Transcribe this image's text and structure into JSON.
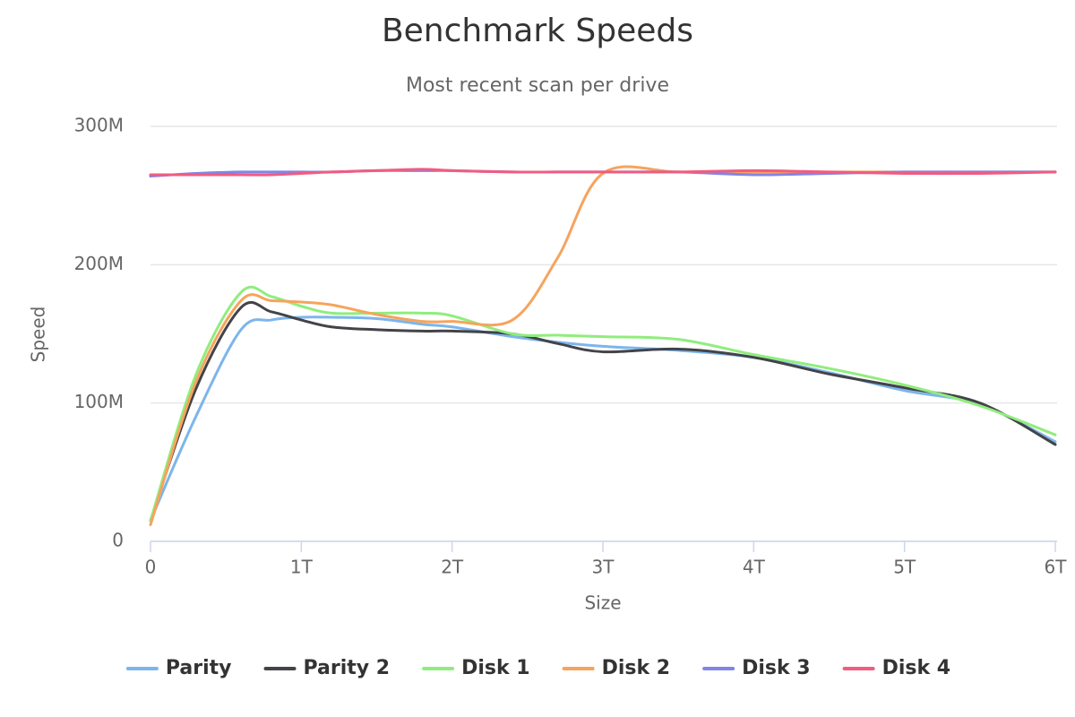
{
  "chart_data": {
    "type": "line",
    "title": "Benchmark Speeds",
    "subtitle": "Most recent scan per drive",
    "x_label": "Size",
    "y_label": "Speed",
    "x": [
      0,
      0.3,
      0.6,
      0.8,
      1,
      1.2,
      1.5,
      1.8,
      2,
      2.4,
      2.7,
      3,
      3.5,
      4,
      4.5,
      5,
      5.5,
      6
    ],
    "series": [
      {
        "name": "Parity",
        "color": "#7cb5ec",
        "values": [
          15,
          90,
          153,
          160,
          162,
          162,
          161,
          157,
          155,
          148,
          144,
          141,
          138,
          133,
          122,
          109,
          99,
          72
        ]
      },
      {
        "name": "Parity 2",
        "color": "#434348",
        "values": [
          15,
          110,
          169,
          166,
          160,
          155,
          153,
          152,
          152,
          150,
          143,
          137,
          139,
          133,
          121,
          111,
          100,
          70
        ]
      },
      {
        "name": "Disk 1",
        "color": "#90ed7d",
        "values": [
          15,
          120,
          180,
          177,
          170,
          165,
          165,
          165,
          163,
          150,
          149,
          148,
          146,
          135,
          125,
          113,
          98,
          77
        ]
      },
      {
        "name": "Disk 2",
        "color": "#f7a35c",
        "values": [
          12,
          115,
          174,
          174,
          173,
          171,
          164,
          159,
          159,
          160,
          205,
          266,
          267,
          267,
          267,
          267,
          267,
          267
        ]
      },
      {
        "name": "Disk 3",
        "color": "#8085e9",
        "values": [
          264,
          266,
          267,
          267,
          267,
          267,
          268,
          268,
          268,
          267,
          267,
          267,
          267,
          265,
          266,
          267,
          267,
          267
        ]
      },
      {
        "name": "Disk 4",
        "color": "#f15c80",
        "values": [
          265,
          265,
          265,
          265,
          266,
          267,
          268,
          269,
          268,
          267,
          267,
          267,
          267,
          268,
          267,
          266,
          266,
          267
        ]
      }
    ],
    "xlim": [
      0,
      6
    ],
    "xticks": [
      0,
      {
        "value": 1,
        "label": "1T"
      },
      {
        "value": 2,
        "label": "2T"
      },
      {
        "value": 3,
        "label": "3T"
      },
      {
        "value": 4,
        "label": "4T"
      },
      {
        "value": 5,
        "label": "5T"
      },
      {
        "value": 6,
        "label": "6T"
      }
    ],
    "ylim": [
      0,
      300
    ],
    "yticks": [
      0,
      {
        "value": 100,
        "label": "100M"
      },
      {
        "value": 200,
        "label": "200M"
      },
      {
        "value": 300,
        "label": "300M"
      }
    ],
    "grid": true,
    "legend": "bottom"
  }
}
